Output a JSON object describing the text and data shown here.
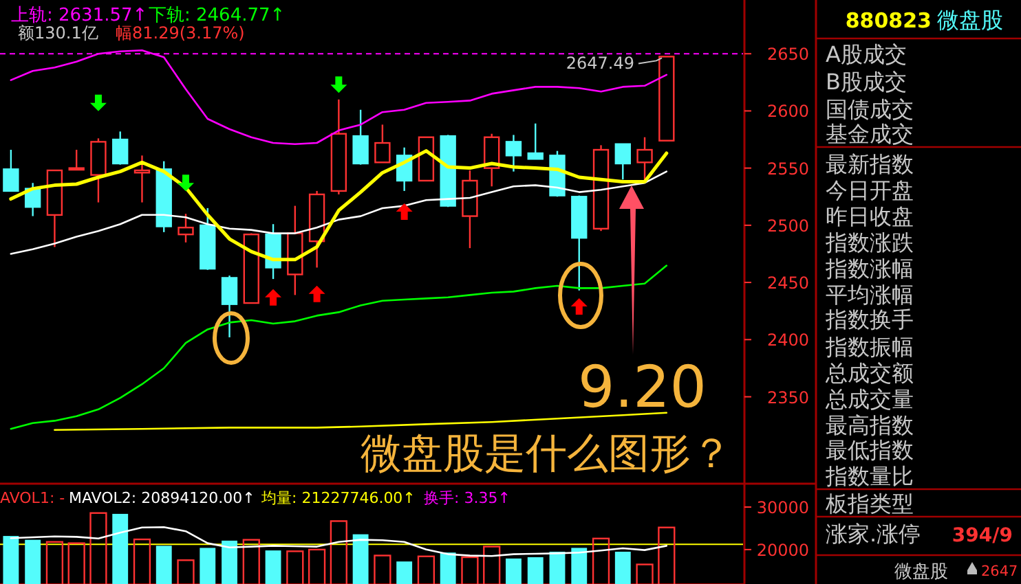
{
  "chart_data": [
    {
      "type": "candlestick",
      "categories": [
        null,
        null,
        null,
        null,
        null,
        null,
        null,
        null,
        null,
        null,
        null,
        null,
        null,
        null,
        null,
        null,
        null,
        null,
        null,
        null,
        null,
        null,
        null,
        null,
        null,
        null,
        null,
        null,
        null,
        null,
        null
      ],
      "ohlc": [
        [
          2549,
          2566,
          2530,
          2530
        ],
        [
          2532,
          2537,
          2508,
          2516
        ],
        [
          2509,
          2548,
          2481,
          2548
        ],
        [
          2549,
          2566,
          2549,
          2550
        ],
        [
          2544,
          2576,
          2520,
          2573
        ],
        [
          2575,
          2582,
          2553,
          2554
        ],
        [
          2546,
          2561,
          2520,
          2548
        ],
        [
          2549,
          2556,
          2494,
          2499
        ],
        [
          2492,
          2510,
          2485,
          2498
        ],
        [
          2500,
          2515,
          2461,
          2462
        ],
        [
          2454,
          2456,
          2402,
          2431
        ],
        [
          2432,
          2493,
          2432,
          2492
        ],
        [
          2492,
          2501,
          2453,
          2463
        ],
        [
          2457,
          2517,
          2439,
          2493
        ],
        [
          2486,
          2530,
          2463,
          2527
        ],
        [
          2530,
          2610,
          2527,
          2580
        ],
        [
          2578,
          2601,
          2553,
          2554
        ],
        [
          2555,
          2588,
          2555,
          2572
        ],
        [
          2561,
          2568,
          2530,
          2539
        ],
        [
          2539,
          2577,
          2539,
          2577
        ],
        [
          2578,
          2579,
          2516,
          2517
        ],
        [
          2508,
          2548,
          2480,
          2539
        ],
        [
          2550,
          2580,
          2534,
          2577
        ],
        [
          2573,
          2579,
          2547,
          2561
        ],
        [
          2563,
          2589,
          2558,
          2558
        ],
        [
          2561,
          2565,
          2525,
          2526
        ],
        [
          2525,
          2526,
          2443,
          2489
        ],
        [
          2497,
          2570,
          2495,
          2566
        ],
        [
          2571,
          2571,
          2540,
          2554
        ],
        [
          2555,
          2577,
          2539,
          2566
        ],
        [
          2574,
          2647.49,
          2574,
          2647.49
        ]
      ],
      "colors": [
        "#54fcfc",
        "#54fcfc",
        "#ff3232",
        "#ff3232",
        "#ff3232",
        "#54fcfc",
        "#ff3232",
        "#54fcfc",
        "#ff3232",
        "#54fcfc",
        "#54fcfc",
        "#ff3232",
        "#54fcfc",
        "#ff3232",
        "#ff3232",
        "#ff3232",
        "#54fcfc",
        "#ff3232",
        "#54fcfc",
        "#ff3232",
        "#54fcfc",
        "#ff3232",
        "#ff3232",
        "#54fcfc",
        "#54fcfc",
        "#54fcfc",
        "#54fcfc",
        "#ff3232",
        "#54fcfc",
        "#ff3232",
        "#ff3232"
      ],
      "series": [
        {
          "type": "line",
          "color": "#ff00ff",
          "values": [
            2627,
            2635,
            2638,
            2643,
            2650,
            2652,
            2653,
            2647,
            2619,
            2593,
            2584,
            2577,
            2572,
            2571,
            2572,
            2583,
            2588,
            2599,
            2601,
            2607,
            2608,
            2609,
            2615,
            2618,
            2621,
            2621,
            2620,
            2617,
            2621,
            2622,
            2631.57
          ]
        },
        {
          "type": "line",
          "color": "#ffffff",
          "values": [
            2475,
            2479,
            2484,
            2490,
            2495,
            2501,
            2509,
            2509,
            2507,
            2501,
            2497,
            2496,
            2493,
            2493,
            2498,
            2505,
            2508,
            2515,
            2517,
            2522,
            2523,
            2524,
            2529,
            2534,
            2535,
            2533,
            2529,
            2531,
            2534,
            2537,
            2547
          ]
        },
        {
          "type": "line",
          "color": "#00ff00",
          "values": [
            2322,
            2327,
            2329,
            2333,
            2339,
            2349,
            2361,
            2375,
            2397,
            2409,
            2415,
            2417,
            2414,
            2416,
            2421,
            2424,
            2430,
            2434,
            2435,
            2436,
            2437,
            2439,
            2441,
            2442,
            2445,
            2447,
            2445,
            2445,
            2447,
            2449,
            2464.77
          ]
        },
        {
          "type": "line",
          "color": "#ffff00",
          "values": [
            2523,
            2532,
            2535,
            2536,
            2542,
            2547,
            2555,
            2547,
            2533,
            2509,
            2488,
            2477,
            2470,
            2470,
            2481,
            2513,
            2529,
            2546,
            2555,
            2565,
            2551,
            2550,
            2554,
            2551,
            2550,
            2549,
            2542,
            2540,
            2538,
            2538,
            2563
          ]
        },
        {
          "type": "line",
          "color": "#ffff00",
          "values": [
            null,
            null,
            2321,
            null,
            null,
            null,
            2322,
            null,
            null,
            null,
            2323,
            null,
            null,
            null,
            2323,
            null,
            2324,
            null,
            null,
            2326,
            null,
            null,
            2328,
            null,
            null,
            2331,
            null,
            null,
            2334,
            null,
            2336
          ]
        },
        {
          "type": "scatter",
          "color": "#00ff00",
          "values": [
            null,
            null,
            null,
            null,
            2607,
            null,
            null,
            null,
            2537,
            null,
            null,
            null,
            null,
            null,
            null,
            2623,
            null,
            null,
            null,
            null,
            null,
            null,
            null,
            null,
            null,
            null,
            null,
            null,
            null,
            null,
            null
          ]
        },
        {
          "type": "scatter",
          "color": "#ff0000",
          "values": [
            null,
            null,
            null,
            null,
            null,
            null,
            null,
            null,
            null,
            null,
            null,
            null,
            2437,
            null,
            2440,
            null,
            null,
            null,
            2512,
            null,
            null,
            null,
            null,
            null,
            null,
            null,
            2429,
            null,
            null,
            null,
            null
          ]
        }
      ],
      "ylim": [
        2274,
        2697
      ],
      "yticks": [
        2350,
        2400,
        2450,
        2500,
        2550,
        2600,
        2650
      ],
      "tick_labels": "y",
      "ref_lines": [
        {
          "axis": "y",
          "value": 2650,
          "color": "#ff00ff",
          "line_style": "dashed"
        }
      ],
      "annotations": [
        "上轨: 2631.57↑",
        "下轨: 2464.77↑",
        "额130.1亿",
        "幅81.29(3.17%)",
        {
          "text": "2647.49",
          "y": 2647.49
        },
        "9.20",
        "微盘股是什么图形？"
      ]
    },
    {
      "type": "bar",
      "categories": [
        null,
        null,
        null,
        null,
        null,
        null,
        null,
        null,
        null,
        null,
        null,
        null,
        null,
        null,
        null,
        null,
        null,
        null,
        null,
        null,
        null,
        null,
        null,
        null,
        null,
        null,
        null,
        null,
        null,
        null,
        null
      ],
      "series": [
        {
          "type": "bar",
          "values": [
            23200,
            22300,
            21800,
            21500,
            28600,
            28400,
            22400,
            20900,
            17500,
            20400,
            22100,
            22300,
            19800,
            19600,
            20000,
            26700,
            23600,
            18600,
            17200,
            18400,
            19300,
            18200,
            20700,
            17900,
            18200,
            19500,
            20400,
            22600,
            19500,
            16500,
            25200
          ],
          "colors": [
            "#54fcfc",
            "#54fcfc",
            "#ff3232",
            "#ff3232",
            "#ff3232",
            "#54fcfc",
            "#ff3232",
            "#54fcfc",
            "#ff3232",
            "#54fcfc",
            "#54fcfc",
            "#ff3232",
            "#54fcfc",
            "#ff3232",
            "#ff3232",
            "#ff3232",
            "#54fcfc",
            "#ff3232",
            "#54fcfc",
            "#ff3232",
            "#54fcfc",
            "#ff3232",
            "#ff3232",
            "#54fcfc",
            "#54fcfc",
            "#54fcfc",
            "#54fcfc",
            "#ff3232",
            "#54fcfc",
            "#ff3232",
            "#ff3232"
          ]
        },
        {
          "type": "line",
          "color": "#ffffff",
          "values": [
            22700,
            22900,
            23100,
            23000,
            22600,
            24000,
            25200,
            25300,
            24300,
            21500,
            20500,
            20700,
            20900,
            20800,
            20700,
            21800,
            22300,
            22200,
            21800,
            20000,
            18900,
            18600,
            18500,
            18900,
            19000,
            19100,
            19300,
            19800,
            20300,
            19900,
            20900
          ]
        }
      ],
      "ylim": [
        11900,
        35500
      ],
      "yticks": [
        20000,
        30000
      ],
      "tick_labels": "y",
      "ref_lines": [
        {
          "axis": "y",
          "value": 21228,
          "color": "#ffff00"
        }
      ],
      "annotations": [
        "AVOL1: -",
        "MAVOL2: 20894120.00↑",
        "均量: 21227746.00↑",
        "换手: 3.35↑"
      ]
    },
    {
      "type": "other",
      "title": "880823",
      "subtitle": "微盘股",
      "annotations": [
        "A股成交",
        "B股成交",
        "国债成交",
        "基金成交",
        "最新指数",
        "今日开盘",
        "昨日收盘",
        "指数涨跌",
        "指数涨幅",
        "平均涨幅",
        "指数换手",
        "指数振幅",
        "总成交额",
        "总成交量",
        "最高指数",
        "最低指数",
        "指数量比",
        "板指类型",
        "涨家.涨停",
        "394/9",
        "微盘股",
        "2647"
      ]
    }
  ]
}
